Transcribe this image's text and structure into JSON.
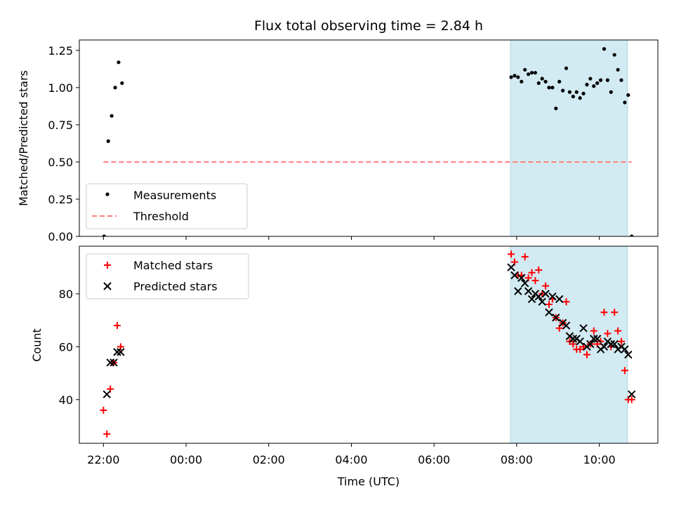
{
  "chart_data": [
    {
      "type": "scatter",
      "panel": "top",
      "title": "Flux total observing time = 2.84 h",
      "xlabel": "",
      "ylabel": "Matched/Predicted stars",
      "ylim": [
        0,
        1.32
      ],
      "yticks": [
        "0.00",
        "0.25",
        "0.50",
        "0.75",
        "1.00",
        "1.25"
      ],
      "ytick_values": [
        0,
        0.25,
        0.5,
        0.75,
        1.0,
        1.25
      ],
      "xlim": [
        "21:25",
        "11:25"
      ],
      "x_axis": "Time (UTC)",
      "shaded_interval": {
        "start": "07:51",
        "end": "10:41",
        "color": "#add8e6"
      },
      "legend": {
        "position": "lower-left",
        "entries": [
          "Measurements",
          "Threshold"
        ]
      },
      "series": [
        {
          "name": "Measurements",
          "marker": "dot",
          "color": "#000000",
          "points": [
            [
              "22:01",
              0.0
            ],
            [
              "22:07",
              0.64
            ],
            [
              "22:12",
              0.81
            ],
            [
              "22:17",
              1.0
            ],
            [
              "22:22",
              1.17
            ],
            [
              "22:27",
              1.03
            ],
            [
              "07:52",
              1.07
            ],
            [
              "07:57",
              1.08
            ],
            [
              "08:02",
              1.07
            ],
            [
              "08:07",
              1.04
            ],
            [
              "08:12",
              1.12
            ],
            [
              "08:17",
              1.09
            ],
            [
              "08:22",
              1.1
            ],
            [
              "08:27",
              1.1
            ],
            [
              "08:32",
              1.03
            ],
            [
              "08:37",
              1.06
            ],
            [
              "08:42",
              1.04
            ],
            [
              "08:47",
              1.0
            ],
            [
              "08:52",
              1.0
            ],
            [
              "08:57",
              0.86
            ],
            [
              "09:02",
              1.04
            ],
            [
              "09:07",
              0.98
            ],
            [
              "09:12",
              1.13
            ],
            [
              "09:17",
              0.97
            ],
            [
              "09:22",
              0.94
            ],
            [
              "09:27",
              0.97
            ],
            [
              "09:32",
              0.93
            ],
            [
              "09:37",
              0.96
            ],
            [
              "09:42",
              1.02
            ],
            [
              "09:47",
              1.06
            ],
            [
              "09:52",
              1.01
            ],
            [
              "09:57",
              1.03
            ],
            [
              "10:02",
              1.05
            ],
            [
              "10:07",
              1.26
            ],
            [
              "10:12",
              1.05
            ],
            [
              "10:17",
              0.97
            ],
            [
              "10:22",
              1.22
            ],
            [
              "10:27",
              1.12
            ],
            [
              "10:32",
              1.05
            ],
            [
              "10:37",
              0.9
            ],
            [
              "10:42",
              0.95
            ],
            [
              "10:47",
              0.0
            ]
          ]
        },
        {
          "name": "Threshold",
          "marker": "dashed-line",
          "color": "#ff7f7f",
          "points": [
            [
              "22:00",
              0.5
            ],
            [
              "10:47",
              0.5
            ]
          ]
        }
      ]
    },
    {
      "type": "scatter",
      "panel": "bottom",
      "title": "",
      "xlabel": "Time (UTC)",
      "ylabel": "Count",
      "ylim": [
        23.5,
        98
      ],
      "yticks": [
        "40",
        "60",
        "80"
      ],
      "ytick_values": [
        40,
        60,
        80
      ],
      "xticks": [
        "22:00",
        "00:00",
        "02:00",
        "04:00",
        "06:00",
        "08:00",
        "10:00"
      ],
      "xlim": [
        "21:25",
        "11:25"
      ],
      "shaded_interval": {
        "start": "07:51",
        "end": "10:41",
        "color": "#add8e6"
      },
      "legend": {
        "position": "upper-left",
        "entries": [
          "Matched stars",
          "Predicted stars"
        ]
      },
      "series": [
        {
          "name": "Matched stars",
          "marker": "plus",
          "color": "#ff0000",
          "points": [
            [
              "22:00",
              36
            ],
            [
              "22:05",
              27
            ],
            [
              "22:10",
              44
            ],
            [
              "22:15",
              54
            ],
            [
              "22:20",
              68
            ],
            [
              "22:25",
              60
            ],
            [
              "07:52",
              95
            ],
            [
              "07:57",
              92
            ],
            [
              "08:02",
              87
            ],
            [
              "08:07",
              87
            ],
            [
              "08:12",
              94
            ],
            [
              "08:17",
              86
            ],
            [
              "08:22",
              88
            ],
            [
              "08:27",
              85
            ],
            [
              "08:32",
              89
            ],
            [
              "08:37",
              80
            ],
            [
              "08:42",
              83
            ],
            [
              "08:47",
              76
            ],
            [
              "08:52",
              78
            ],
            [
              "08:57",
              71
            ],
            [
              "09:02",
              67
            ],
            [
              "09:07",
              69
            ],
            [
              "09:12",
              77
            ],
            [
              "09:17",
              62
            ],
            [
              "09:22",
              61
            ],
            [
              "09:27",
              59
            ],
            [
              "09:32",
              59
            ],
            [
              "09:37",
              60
            ],
            [
              "09:42",
              57
            ],
            [
              "09:47",
              61
            ],
            [
              "09:52",
              66
            ],
            [
              "09:57",
              61
            ],
            [
              "10:02",
              62
            ],
            [
              "10:07",
              73
            ],
            [
              "10:12",
              65
            ],
            [
              "10:17",
              60
            ],
            [
              "10:22",
              73
            ],
            [
              "10:27",
              66
            ],
            [
              "10:32",
              62
            ],
            [
              "10:37",
              51
            ],
            [
              "10:42",
              40
            ],
            [
              "10:47",
              40
            ]
          ]
        },
        {
          "name": "Predicted stars",
          "marker": "x",
          "color": "#000000",
          "points": [
            [
              "22:05",
              42
            ],
            [
              "22:10",
              54
            ],
            [
              "22:15",
              54
            ],
            [
              "22:20",
              58
            ],
            [
              "22:25",
              58
            ],
            [
              "07:52",
              90
            ],
            [
              "07:57",
              87
            ],
            [
              "08:02",
              81
            ],
            [
              "08:07",
              86
            ],
            [
              "08:12",
              84
            ],
            [
              "08:17",
              81
            ],
            [
              "08:22",
              78
            ],
            [
              "08:27",
              80
            ],
            [
              "08:32",
              79
            ],
            [
              "08:37",
              77
            ],
            [
              "08:42",
              80
            ],
            [
              "08:47",
              73
            ],
            [
              "08:52",
              79
            ],
            [
              "08:57",
              71
            ],
            [
              "09:02",
              78
            ],
            [
              "09:07",
              69
            ],
            [
              "09:12",
              68
            ],
            [
              "09:17",
              64
            ],
            [
              "09:22",
              63
            ],
            [
              "09:27",
              63
            ],
            [
              "09:32",
              62
            ],
            [
              "09:37",
              67
            ],
            [
              "09:42",
              60
            ],
            [
              "09:47",
              61
            ],
            [
              "09:52",
              63
            ],
            [
              "09:57",
              63
            ],
            [
              "10:02",
              59
            ],
            [
              "10:07",
              60
            ],
            [
              "10:12",
              62
            ],
            [
              "10:17",
              61
            ],
            [
              "10:22",
              61
            ],
            [
              "10:27",
              59
            ],
            [
              "10:32",
              60
            ],
            [
              "10:37",
              59
            ],
            [
              "10:42",
              57
            ],
            [
              "10:47",
              42
            ]
          ]
        }
      ]
    }
  ]
}
